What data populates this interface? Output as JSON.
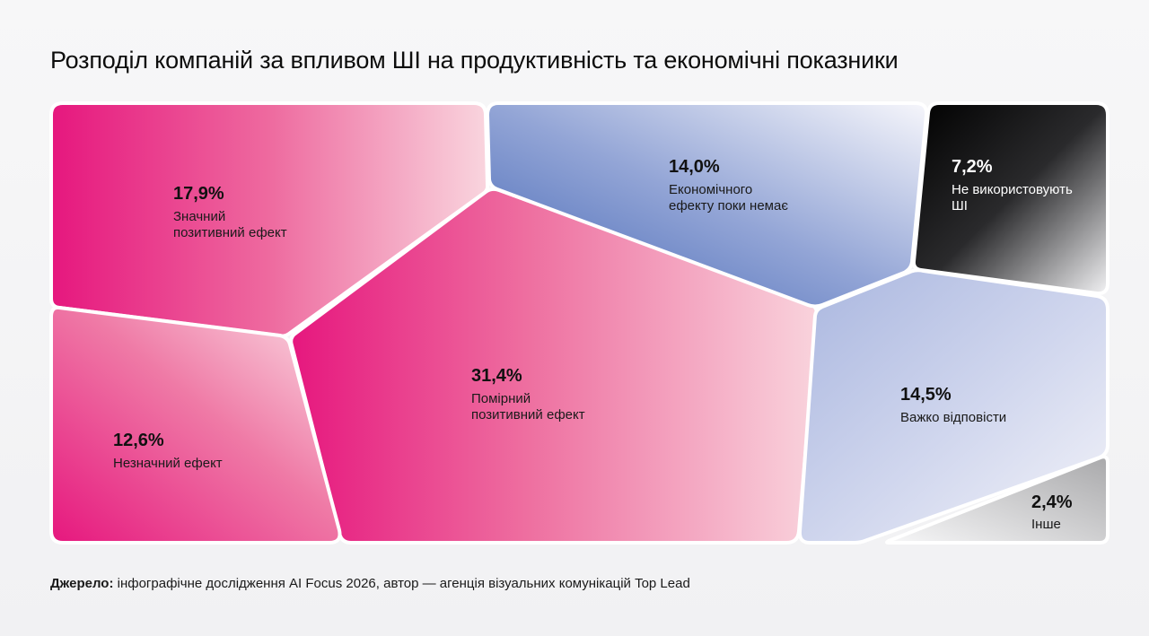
{
  "title": "Розподіл компаній за впливом ШІ на продуктивність та економічні показники",
  "colors": {
    "pink_dark": "#e6177e",
    "pink_light": "#f9d3dc",
    "blue_dark": "#4a6fbb",
    "blue_light": "#f2f3fa",
    "lavender": "#b4bfe2",
    "black": "#050505",
    "grey": "#b9b9bb"
  },
  "chart_data": {
    "type": "voronoi-treemap",
    "title": "Розподіл компаній за впливом ШІ на продуктивність та економічні показники",
    "unit": "%",
    "segments": [
      {
        "id": "significant",
        "value_label": "17,9%",
        "value": 17.9,
        "label_lines": [
          "Значний",
          "позитивний ефект"
        ]
      },
      {
        "id": "moderate",
        "value_label": "31,4%",
        "value": 31.4,
        "label_lines": [
          "Помірний",
          "позитивний ефект"
        ]
      },
      {
        "id": "insignificant",
        "value_label": "12,6%",
        "value": 12.6,
        "label_lines": [
          "Незначний ефект"
        ]
      },
      {
        "id": "no-economic",
        "value_label": "14,0%",
        "value": 14.0,
        "label_lines": [
          "Економічного",
          "ефекту поки немає"
        ]
      },
      {
        "id": "not-using",
        "value_label": "7,2%",
        "value": 7.2,
        "label_lines": [
          "Не використовують",
          "ШІ"
        ]
      },
      {
        "id": "hard-to-answer",
        "value_label": "14,5%",
        "value": 14.5,
        "label_lines": [
          "Важко відповісти"
        ]
      },
      {
        "id": "other",
        "value_label": "2,4%",
        "value": 2.4,
        "label_lines": [
          "Інше"
        ]
      }
    ]
  },
  "source": {
    "label": "Джерело:",
    "text": " інфографічне дослідження AI Focus 2026, автор — агенція візуальних комунікацій Top Lead"
  }
}
